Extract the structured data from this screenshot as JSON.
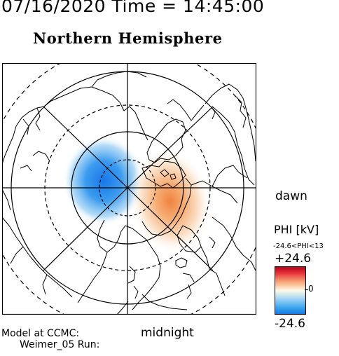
{
  "header": {
    "title": "07/16/2020 Time = 14:45:00",
    "subtitle": "Northern Hemisphere"
  },
  "labels": {
    "dawn": "dawn",
    "midnight": "midnight"
  },
  "colorbar": {
    "title": "PHI [kV]",
    "range_text": "-24.6<PHI<13",
    "max_label": "+24.6",
    "zero_label": "0",
    "min_label": "-24.6",
    "colors": {
      "positive": "#e8383c",
      "neutral": "#ffffff",
      "negative": "#1479e6"
    }
  },
  "footer": {
    "line1": "Model at CCMC:",
    "line2": "Weimer_05 Run:"
  }
}
